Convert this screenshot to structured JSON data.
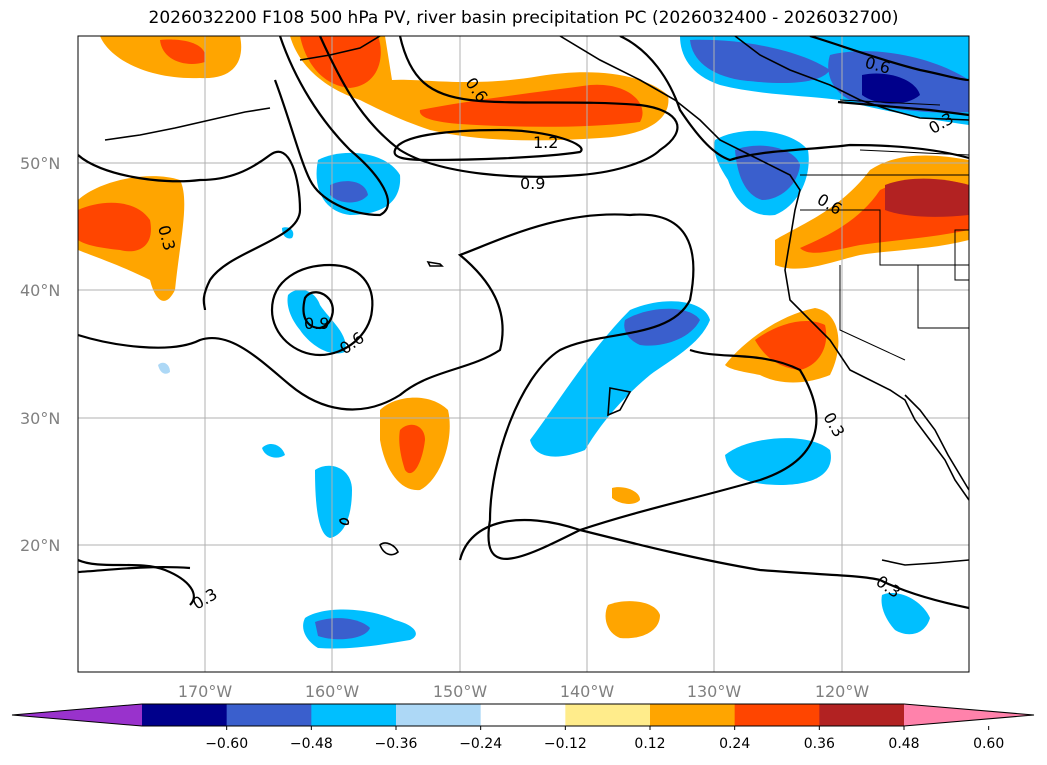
{
  "title": "2026032200 F108 500 hPa PV, river basin precipitation PC (2026032400 - 2026032700)",
  "map": {
    "lat_labels": [
      "50°N",
      "40°N",
      "30°N",
      "20°N"
    ],
    "lon_labels": [
      "170°W",
      "160°W",
      "150°W",
      "140°W",
      "130°W",
      "120°W"
    ],
    "contour_labels": [
      "0.6",
      "1.2",
      "0.9",
      "0.6",
      "0.9",
      "0.6",
      "0.3",
      "0.3",
      "0.6",
      "0.3",
      "0.3",
      "0.3"
    ]
  },
  "colorbar": {
    "ticks": [
      "−0.60",
      "−0.48",
      "−0.36",
      "−0.24",
      "−0.12",
      "0.12",
      "0.24",
      "0.36",
      "0.48",
      "0.60"
    ],
    "colors": [
      "#9932cc",
      "#00008b",
      "#3a5fcd",
      "#00bfff",
      "#add8f6",
      "#ffffff",
      "#ffec8b",
      "#ffa500",
      "#ff4500",
      "#b22222",
      "#ff82ab"
    ]
  },
  "colors": {
    "gridline": "#b0b0b0",
    "contour": "#000000",
    "coast": "#000000"
  }
}
